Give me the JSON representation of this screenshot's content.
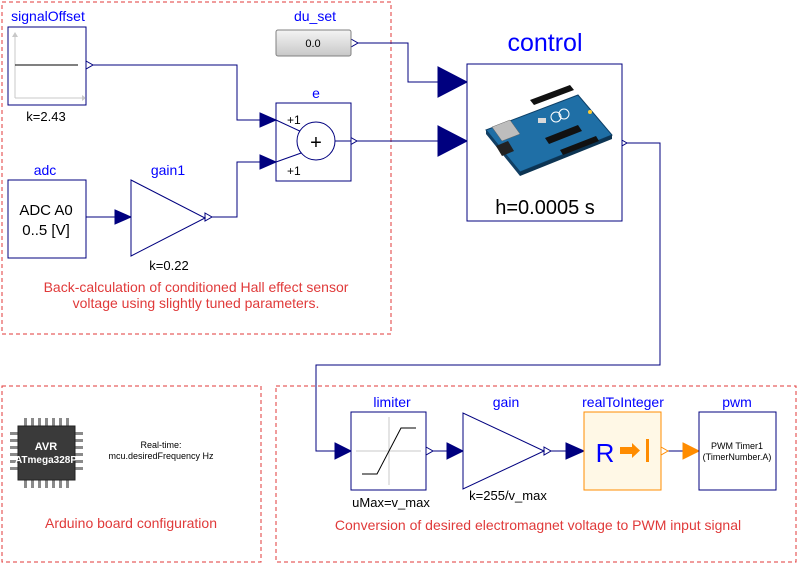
{
  "groups": {
    "sensor": {
      "caption_line1": "Back-calculation of conditioned Hall effect sensor",
      "caption_line2": "voltage using slightly tuned parameters."
    },
    "board": {
      "caption": "Arduino board configuration"
    },
    "pwm_group": {
      "caption": "Conversion of desired electromagnet voltage to PWM input signal"
    }
  },
  "blocks": {
    "signalOffset": {
      "name": "signalOffset",
      "param": "k=2.43"
    },
    "du_set": {
      "name": "du_set",
      "value": "0.0"
    },
    "e": {
      "name": "e",
      "in1_sign": "+1",
      "in2_sign": "+1",
      "symbol": "+"
    },
    "control": {
      "name": "control",
      "param": "h=0.0005 s"
    },
    "adc": {
      "name": "adc",
      "line1": "ADC A0",
      "line2": "0..5 [V]"
    },
    "gain1": {
      "name": "gain1",
      "param": "k=0.22"
    },
    "mcu": {
      "chip_line1": "AVR",
      "chip_line2": "ATmega328P",
      "info_line1": "Real-time:",
      "info_line2": "mcu.desiredFrequency Hz"
    },
    "limiter": {
      "name": "limiter",
      "param": "uMax=v_max"
    },
    "gain": {
      "name": "gain",
      "param": "k=255/v_max"
    },
    "realToInteger": {
      "name": "realToInteger",
      "symbol": "R"
    },
    "pwm": {
      "name": "pwm",
      "line1": "PWM Timer1",
      "line2": "(TimerNumber.A)"
    }
  },
  "colors": {
    "block_name": "#0000ff",
    "connection": "#00007f",
    "group_border": "#e03a3a",
    "caption": "#e03a3a",
    "converter": "#ff8c00",
    "arduino_board": "#1f6fa6"
  }
}
